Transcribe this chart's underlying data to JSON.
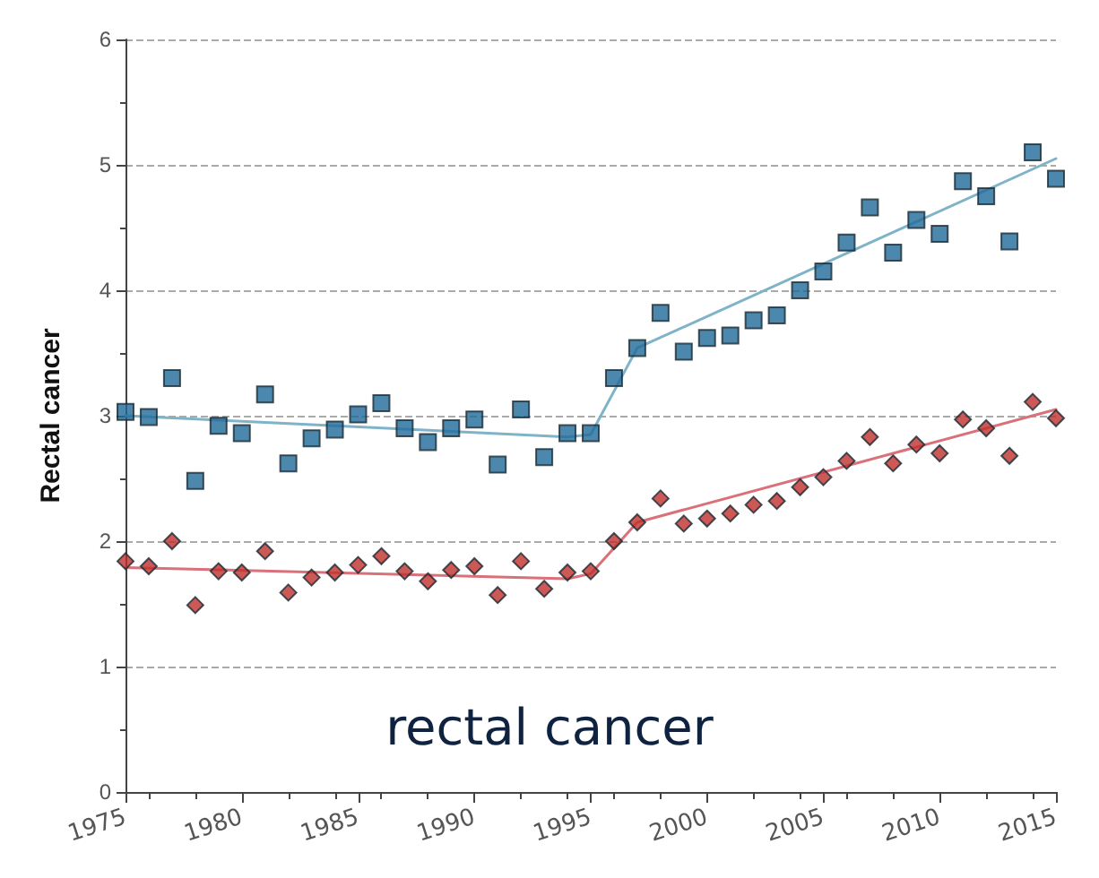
{
  "chart_data": {
    "type": "scatter",
    "ylabel": "Rectal cancer",
    "annotations": [
      "rectal cancer"
    ],
    "x": [
      1975,
      1976,
      1977,
      1978,
      1979,
      1980,
      1981,
      1982,
      1983,
      1984,
      1985,
      1986,
      1987,
      1988,
      1989,
      1990,
      1991,
      1992,
      1993,
      1994,
      1995,
      1996,
      1997,
      1998,
      1999,
      2000,
      2001,
      2002,
      2003,
      2004,
      2005,
      2006,
      2007,
      2008,
      2009,
      2010,
      2011,
      2012,
      2013,
      2014,
      2015
    ],
    "series": [
      {
        "marker": "square",
        "color": "#1f6a9a",
        "values": [
          3.03,
          2.99,
          3.3,
          2.48,
          2.92,
          2.86,
          3.17,
          2.62,
          2.82,
          2.89,
          3.01,
          3.1,
          2.9,
          2.79,
          2.9,
          2.97,
          2.61,
          3.05,
          2.67,
          2.86,
          2.86,
          3.3,
          3.54,
          3.82,
          3.51,
          3.62,
          3.64,
          3.76,
          3.8,
          4.0,
          4.15,
          4.38,
          4.66,
          4.3,
          4.56,
          4.45,
          4.87,
          4.75,
          4.39,
          5.1,
          4.89
        ]
      },
      {
        "marker": "diamond",
        "color": "#c0302c",
        "values": [
          1.84,
          1.8,
          2.0,
          1.49,
          1.76,
          1.75,
          1.92,
          1.59,
          1.71,
          1.75,
          1.81,
          1.88,
          1.76,
          1.68,
          1.77,
          1.8,
          1.57,
          1.84,
          1.62,
          1.75,
          1.76,
          2.0,
          2.15,
          2.34,
          2.14,
          2.18,
          2.22,
          2.29,
          2.32,
          2.43,
          2.51,
          2.64,
          2.83,
          2.62,
          2.77,
          2.7,
          2.97,
          2.9,
          2.68,
          3.11,
          2.98
        ]
      },
      {
        "type": "line",
        "marker": "none",
        "color": "#7fb3c8",
        "x": [
          1975,
          1994,
          1995,
          1997,
          2015
        ],
        "values": [
          3.0,
          2.83,
          2.85,
          3.54,
          5.05
        ]
      },
      {
        "type": "line",
        "marker": "none",
        "color": "#d9707a",
        "x": [
          1975,
          1994,
          1995,
          1997,
          2015
        ],
        "values": [
          1.79,
          1.7,
          1.74,
          2.15,
          3.05
        ]
      }
    ],
    "xlim": [
      1975,
      2015
    ],
    "xticks": [
      1975,
      1980,
      1985,
      1990,
      1995,
      2000,
      2005,
      2010,
      2015
    ],
    "ylim": [
      0,
      6
    ],
    "yticks": [
      0,
      1,
      2,
      3,
      4,
      5,
      6
    ],
    "grid": "y",
    "line_style": "solid"
  }
}
